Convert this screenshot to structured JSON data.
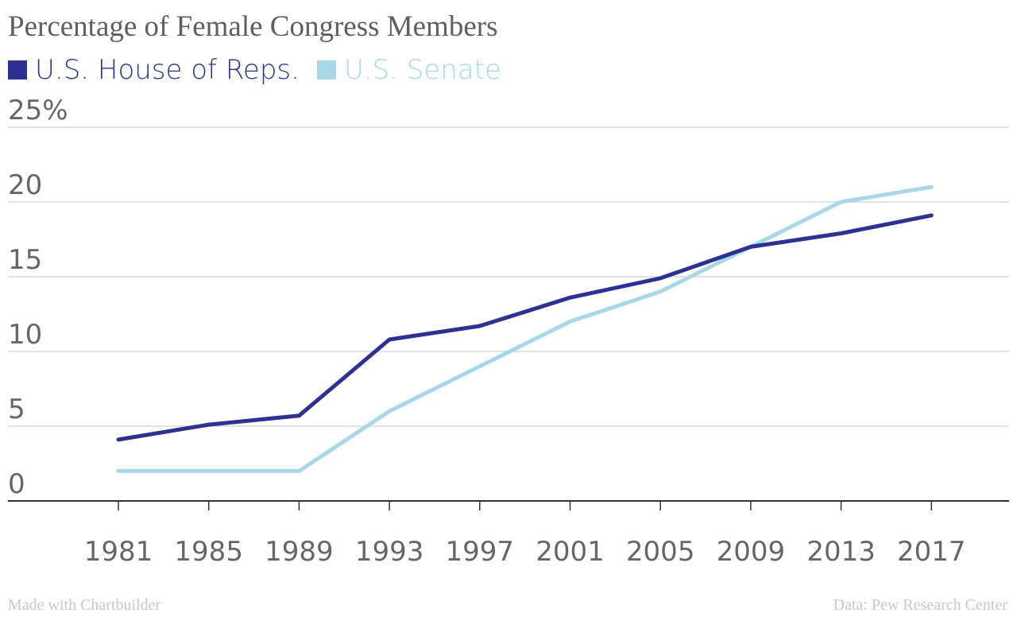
{
  "chart_data": {
    "type": "line",
    "title": "Percentage of Female Congress Members",
    "x": [
      "1981",
      "1985",
      "1989",
      "1993",
      "1997",
      "2001",
      "2005",
      "2009",
      "2013",
      "2017"
    ],
    "series": [
      {
        "name": "U.S. House of Reps.",
        "color": "#2e3192",
        "values": [
          4.1,
          5.1,
          5.7,
          10.8,
          11.7,
          13.6,
          14.9,
          17.0,
          17.9,
          19.1
        ]
      },
      {
        "name": "U.S. Senate",
        "color": "#a8d8e8",
        "values": [
          2,
          2,
          2,
          6,
          9,
          12,
          14,
          17,
          20,
          21
        ]
      }
    ],
    "ylim": [
      0,
      25
    ],
    "yticks": [
      0,
      5,
      10,
      15,
      20,
      25
    ],
    "ytick_labels": [
      "0",
      "5",
      "10",
      "15",
      "20",
      "25%"
    ],
    "grid": true,
    "legend_position": "top-left"
  },
  "footer": {
    "credit": "Made with Chartbuilder",
    "source": "Data: Pew Research Center"
  }
}
